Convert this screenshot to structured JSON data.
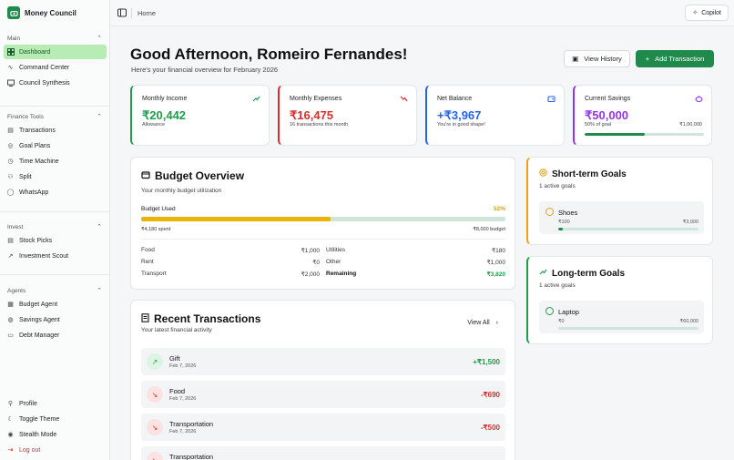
{
  "app": {
    "name": "Money Council"
  },
  "topbar": {
    "breadcrumb": "Home",
    "copilot_label": "Copilot"
  },
  "sidebar": {
    "sections": [
      {
        "title": "Main",
        "items": [
          "Dashboard",
          "Command Center",
          "Council Synthesis"
        ]
      },
      {
        "title": "Finance Tools",
        "items": [
          "Transactions",
          "Goal Plans",
          "Time Machine",
          "Split",
          "WhatsApp"
        ]
      },
      {
        "title": "Invest",
        "items": [
          "Stock Picks",
          "Investment Scout"
        ]
      },
      {
        "title": "Agents",
        "items": [
          "Budget Agent",
          "Savings Agent",
          "Debt Manager"
        ]
      }
    ],
    "footer": [
      "Profile",
      "Toggle Theme",
      "Stealth Mode",
      "Log out"
    ],
    "active": "Dashboard"
  },
  "header": {
    "greeting": "Good Afternoon, Romeiro Fernandes!",
    "subtitle": "Here's your financial overview for February 2026",
    "history_label": "View History",
    "add_label": "Add Transaction"
  },
  "stats": [
    {
      "label": "Monthly Income",
      "value": "₹20,442",
      "note": "Allowance",
      "color": "#1f9d4c",
      "icon": "trend-up-icon"
    },
    {
      "label": "Monthly Expenses",
      "value": "₹16,475",
      "note": "16 transactions this month",
      "color": "#d92d2d",
      "icon": "trend-down-icon"
    },
    {
      "label": "Net Balance",
      "value": "+₹3,967",
      "note": "You're in good shape!",
      "color": "#2563eb",
      "icon": "wallet-icon"
    },
    {
      "label": "Current Savings",
      "value": "₹50,000",
      "note": "50% of goal",
      "goal": "₹1,00,000",
      "progress": 0.5,
      "color": "#9333ea",
      "icon": "piggy-bank-icon"
    }
  ],
  "budget": {
    "title": "Budget Overview",
    "subtitle": "Your monthly budget utilization",
    "used_label": "Budget Used",
    "used_pct": "52%",
    "used_fraction": 0.52,
    "spent": "₹4,180 spent",
    "total": "₹8,000 budget",
    "categories": [
      {
        "name": "Food",
        "amount": "₹1,000"
      },
      {
        "name": "Utilities",
        "amount": "₹180"
      },
      {
        "name": "Rent",
        "amount": "₹0"
      },
      {
        "name": "Other",
        "amount": "₹1,000"
      },
      {
        "name": "Transport",
        "amount": "₹2,000"
      },
      {
        "name": "Remaining",
        "amount": "₹3,820"
      }
    ]
  },
  "recent": {
    "title": "Recent Transactions",
    "subtitle": "Your latest financial activity",
    "view_all": "View All",
    "items": [
      {
        "name": "Gift",
        "date": "Feb 7, 2026",
        "amount": "+₹1,500",
        "type": "income"
      },
      {
        "name": "Food",
        "date": "Feb 7, 2026",
        "amount": "-₹690",
        "type": "expense"
      },
      {
        "name": "Transportation",
        "date": "Feb 7, 2026",
        "amount": "-₹500",
        "type": "expense"
      },
      {
        "name": "Transportation",
        "date": "",
        "amount": "",
        "type": "expense"
      }
    ]
  },
  "goals": [
    {
      "title": "Short-term Goals",
      "count": "1 active goals",
      "color": "#e8a317",
      "item": {
        "name": "Shoes",
        "current": "₹100",
        "target": "₹3,000",
        "progress": 0.033
      }
    },
    {
      "title": "Long-term Goals",
      "count": "1 active goals",
      "color": "#1f9d4c",
      "item": {
        "name": "Laptop",
        "current": "₹0",
        "target": "₹60,000",
        "progress": 0
      }
    }
  ]
}
